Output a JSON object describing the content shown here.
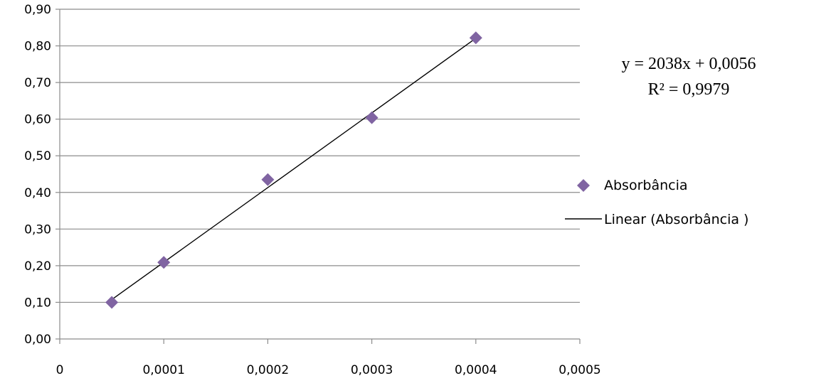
{
  "chart_data": {
    "type": "scatter",
    "title": "",
    "xlabel": "",
    "ylabel": "",
    "xlim": [
      0,
      0.0005
    ],
    "ylim": [
      0,
      0.9
    ],
    "x_ticks": [
      0,
      0.0001,
      0.0002,
      0.0003,
      0.0004,
      0.0005
    ],
    "x_tick_labels": [
      "0",
      "0,0001",
      "0,0002",
      "0,0003",
      "0,0004",
      "0,0005"
    ],
    "y_ticks": [
      0,
      0.1,
      0.2,
      0.3,
      0.4,
      0.5,
      0.6,
      0.7,
      0.8,
      0.9
    ],
    "y_tick_labels": [
      "0,00",
      "0,10",
      "0,20",
      "0,30",
      "0,40",
      "0,50",
      "0,60",
      "0,70",
      "0,80",
      "0,90"
    ],
    "grid": "horizontal",
    "legend_position": "right",
    "series": [
      {
        "name": "Absorbância",
        "marker": "diamond",
        "color": "#8064A2",
        "x": [
          5e-05,
          0.0001,
          0.0002,
          0.0003,
          0.0004
        ],
        "y": [
          0.1,
          0.209,
          0.435,
          0.604,
          0.822
        ]
      }
    ],
    "trendline": {
      "name": "Linear (Absorbância )",
      "type": "linear",
      "slope": 2038,
      "intercept": 0.0056,
      "x_range": [
        5e-05,
        0.0004
      ],
      "color": "#000000",
      "equation_label": "y = 2038x + 0,0056",
      "r2_label": "R² = 0,9979"
    }
  }
}
